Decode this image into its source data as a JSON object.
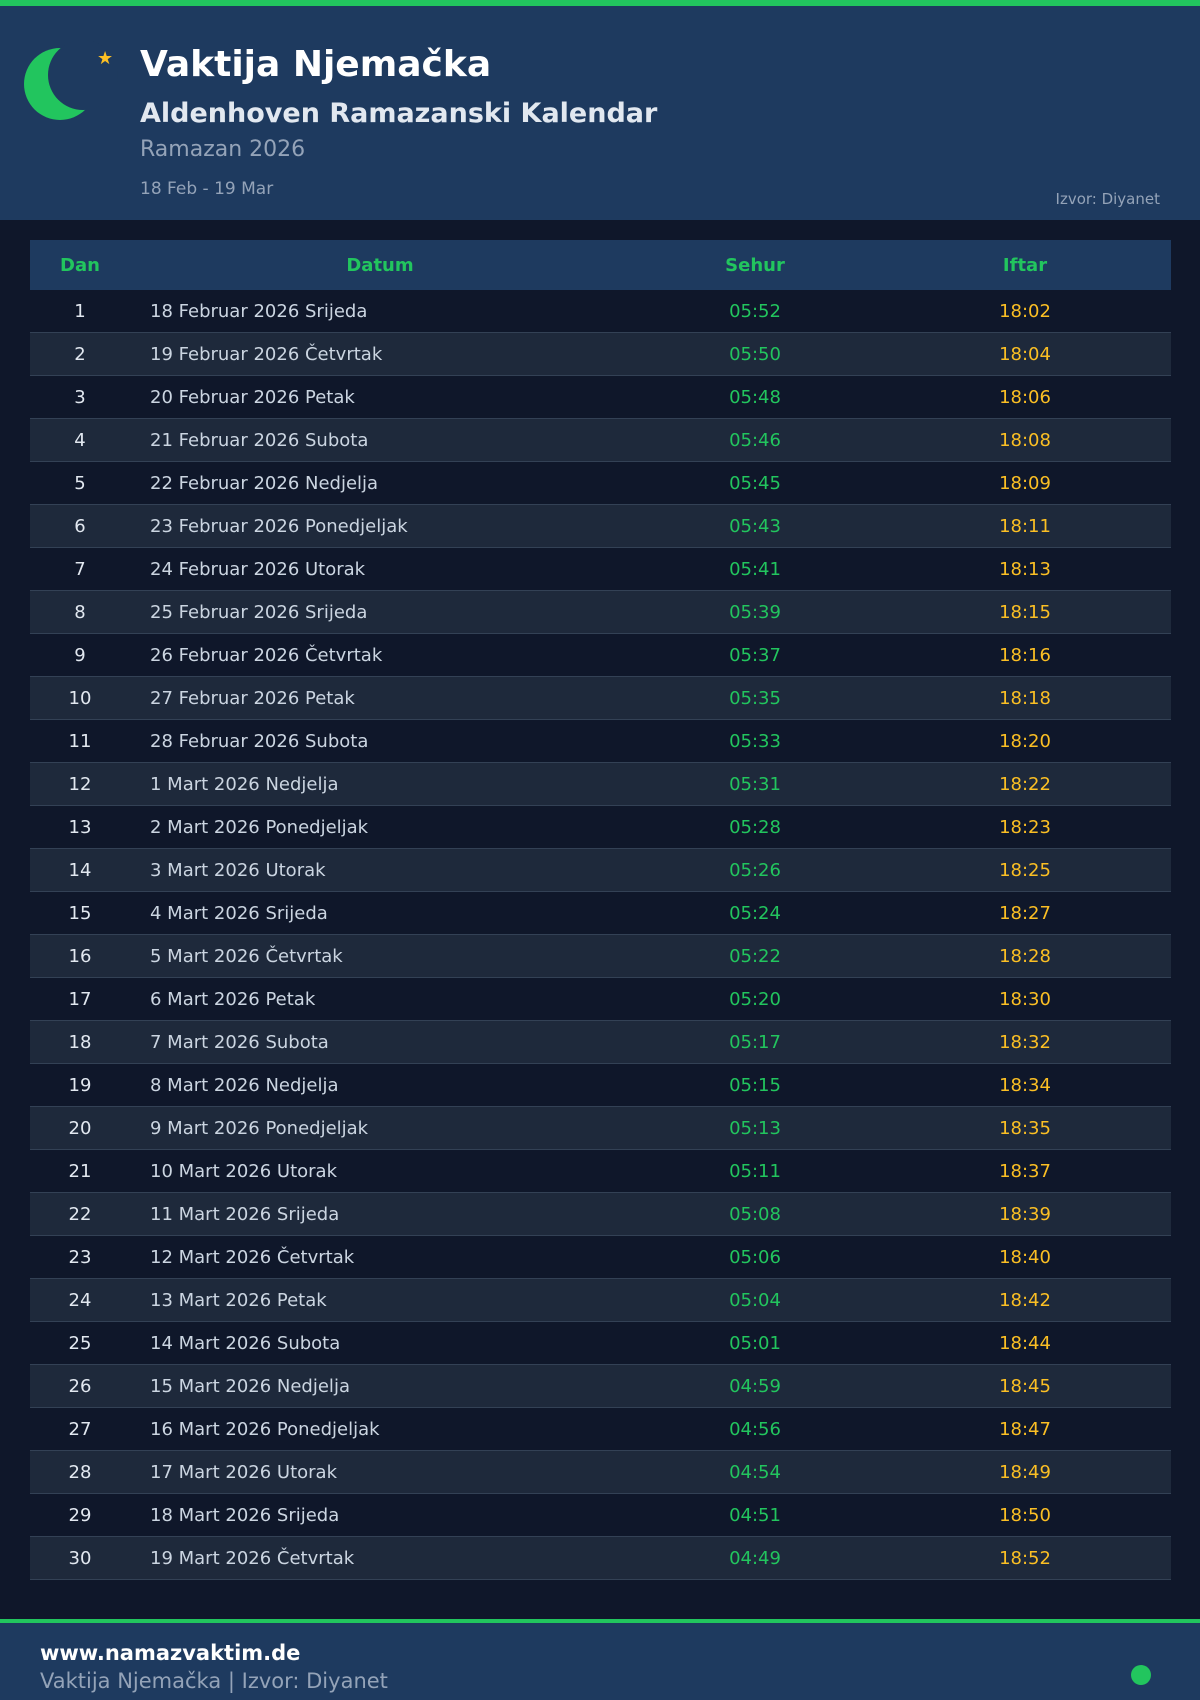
{
  "header": {
    "title": "Vaktija Njemačka",
    "subtitle": "Aldenhoven Ramazanski Kalendar",
    "ramazan": "Ramazan 2026",
    "range": "18 Feb - 19 Mar",
    "source": "Izvor: Diyanet",
    "icons": [
      "crescent-moon-icon",
      "star-icon"
    ]
  },
  "table": {
    "headers": {
      "dan": "Dan",
      "datum": "Datum",
      "sehur": "Sehur",
      "iftar": "Iftar"
    },
    "rows": [
      [
        "1",
        "18 Februar 2026 Srijeda",
        "05:52",
        "18:02"
      ],
      [
        "2",
        "19 Februar 2026 Četvrtak",
        "05:50",
        "18:04"
      ],
      [
        "3",
        "20 Februar 2026 Petak",
        "05:48",
        "18:06"
      ],
      [
        "4",
        "21 Februar 2026 Subota",
        "05:46",
        "18:08"
      ],
      [
        "5",
        "22 Februar 2026 Nedjelja",
        "05:45",
        "18:09"
      ],
      [
        "6",
        "23 Februar 2026 Ponedjeljak",
        "05:43",
        "18:11"
      ],
      [
        "7",
        "24 Februar 2026 Utorak",
        "05:41",
        "18:13"
      ],
      [
        "8",
        "25 Februar 2026 Srijeda",
        "05:39",
        "18:15"
      ],
      [
        "9",
        "26 Februar 2026 Četvrtak",
        "05:37",
        "18:16"
      ],
      [
        "10",
        "27 Februar 2026 Petak",
        "05:35",
        "18:18"
      ],
      [
        "11",
        "28 Februar 2026 Subota",
        "05:33",
        "18:20"
      ],
      [
        "12",
        "1 Mart 2026 Nedjelja",
        "05:31",
        "18:22"
      ],
      [
        "13",
        "2 Mart 2026 Ponedjeljak",
        "05:28",
        "18:23"
      ],
      [
        "14",
        "3 Mart 2026 Utorak",
        "05:26",
        "18:25"
      ],
      [
        "15",
        "4 Mart 2026 Srijeda",
        "05:24",
        "18:27"
      ],
      [
        "16",
        "5 Mart 2026 Četvrtak",
        "05:22",
        "18:28"
      ],
      [
        "17",
        "6 Mart 2026 Petak",
        "05:20",
        "18:30"
      ],
      [
        "18",
        "7 Mart 2026 Subota",
        "05:17",
        "18:32"
      ],
      [
        "19",
        "8 Mart 2026 Nedjelja",
        "05:15",
        "18:34"
      ],
      [
        "20",
        "9 Mart 2026 Ponedjeljak",
        "05:13",
        "18:35"
      ],
      [
        "21",
        "10 Mart 2026 Utorak",
        "05:11",
        "18:37"
      ],
      [
        "22",
        "11 Mart 2026 Srijeda",
        "05:08",
        "18:39"
      ],
      [
        "23",
        "12 Mart 2026 Četvrtak",
        "05:06",
        "18:40"
      ],
      [
        "24",
        "13 Mart 2026 Petak",
        "05:04",
        "18:42"
      ],
      [
        "25",
        "14 Mart 2026 Subota",
        "05:01",
        "18:44"
      ],
      [
        "26",
        "15 Mart 2026 Nedjelja",
        "04:59",
        "18:45"
      ],
      [
        "27",
        "16 Mart 2026 Ponedjeljak",
        "04:56",
        "18:47"
      ],
      [
        "28",
        "17 Mart 2026 Utorak",
        "04:54",
        "18:49"
      ],
      [
        "29",
        "18 Mart 2026 Srijeda",
        "04:51",
        "18:50"
      ],
      [
        "30",
        "19 Mart 2026 Četvrtak",
        "04:49",
        "18:52"
      ]
    ]
  },
  "footer": {
    "site": "www.namazvaktim.de",
    "sub": "Vaktija Njemačka | Izvor: Diyanet"
  },
  "colors": {
    "accent": "#22c55e",
    "iftar": "#fbbf24",
    "header_bg": "#1e3a5f",
    "page_bg": "#0f172a"
  }
}
